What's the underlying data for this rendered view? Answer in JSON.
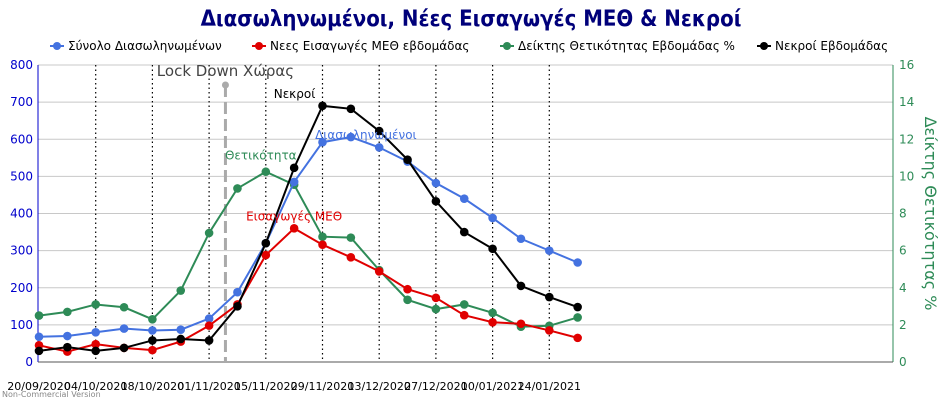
{
  "chart_data": {
    "type": "line",
    "title": "Διασωληνωμένοι, Νέες Εισαγωγές ΜΕΘ & Νεκροί",
    "x": [
      "20/09/2020",
      "27/09/2020",
      "04/10/2020",
      "11/10/2020",
      "18/10/2020",
      "25/10/2020",
      "01/11/2020",
      "08/11/2020",
      "15/11/2020",
      "22/11/2020",
      "29/11/2020",
      "06/12/2020",
      "13/12/2020",
      "20/12/2020",
      "27/12/2020",
      "03/01/2021",
      "10/01/2021",
      "17/01/2021",
      "24/01/2021",
      "31/01/2021"
    ],
    "x_tick_labels": [
      "20/09/2020",
      "04/10/2020",
      "18/10/2020",
      "01/11/2020",
      "15/11/2020",
      "29/11/2020",
      "13/12/2020",
      "27/12/2020",
      "10/01/2021",
      "24/01/2021"
    ],
    "ylim_left": [
      0,
      800
    ],
    "yticks_left": [
      "0",
      "100",
      "200",
      "300",
      "400",
      "500",
      "600",
      "700",
      "800"
    ],
    "ylim_right": [
      0,
      16
    ],
    "yticks_right": [
      "0",
      "2",
      "4",
      "6",
      "8",
      "10",
      "12",
      "14",
      "16"
    ],
    "ylabel_right": "Δείκτης Θετικότητας %",
    "legend_position": "top",
    "series": [
      {
        "name": "Σύνολο Διασωληνωμένων",
        "axis": "left",
        "color": "#4472e0",
        "values": [
          68,
          70,
          80,
          90,
          85,
          87,
          117,
          188,
          320,
          485,
          592,
          606,
          578,
          540,
          482,
          440,
          388,
          332,
          300,
          268
        ]
      },
      {
        "name": "Νεες Εισαγωγές ΜΕΘ εβδομάδας",
        "axis": "left",
        "color": "#e00000",
        "values": [
          45,
          28,
          48,
          38,
          32,
          55,
          98,
          155,
          288,
          360,
          316,
          282,
          244,
          196,
          173,
          126,
          107,
          103,
          85,
          65
        ]
      },
      {
        "name": "Δείκτης Θετικότητας Εβδομάδας %",
        "axis": "right",
        "color": "#2e8b57",
        "values": [
          2.5,
          2.7,
          3.1,
          2.95,
          2.3,
          3.85,
          6.95,
          9.35,
          10.25,
          9.55,
          6.75,
          6.7,
          4.95,
          3.35,
          2.85,
          3.1,
          2.65,
          1.9,
          1.95,
          2.4
        ]
      },
      {
        "name": "Νεκροί Εβδομάδας",
        "axis": "left",
        "color": "#000000",
        "values": [
          30,
          40,
          30,
          38,
          58,
          62,
          58,
          150,
          320,
          523,
          690,
          682,
          622,
          545,
          433,
          350,
          305,
          205,
          175,
          148
        ]
      }
    ],
    "annotations": [
      {
        "text": "Lock Down Χώρας",
        "x": "08/11/2020",
        "color": "#444444"
      },
      {
        "text": "Νεκροί",
        "x": "29/11/2020",
        "y": 690,
        "color": "#000000"
      },
      {
        "text": "Διασωληνωμένοι",
        "x": "06/12/2020",
        "y": 606,
        "color": "#4472e0"
      },
      {
        "text": "Θετικότητα",
        "x": "15/11/2020",
        "y_right": 10.25,
        "color": "#2e8b57"
      },
      {
        "text": "Εισαγωγές ΜΕΘ",
        "x": "22/11/2020",
        "y": 360,
        "color": "#e00000"
      }
    ],
    "grid": true
  },
  "footer": {
    "watermark": "Non-Commercial Version"
  },
  "colors": {
    "left_axis": "#0000cc",
    "right_axis": "#2e8b57",
    "title": "#00007a"
  }
}
